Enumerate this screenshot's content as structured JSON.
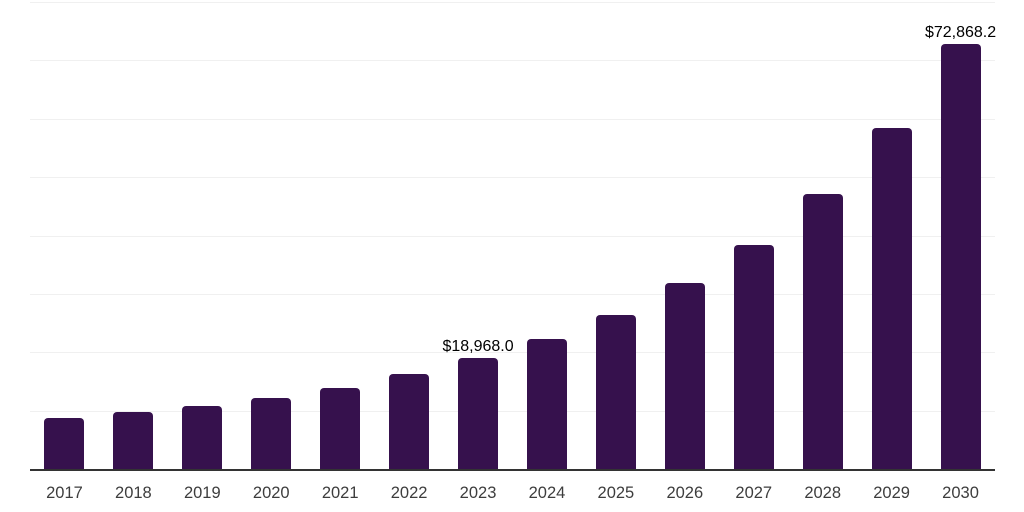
{
  "colors": {
    "background": "#ffffff",
    "bar": "#36114d",
    "gridline": "#f0f0f0",
    "axis_line": "#333333",
    "tick_label": "#3d3d3d",
    "value_label": "#000000"
  },
  "chart_data": {
    "type": "bar",
    "title": "",
    "xlabel": "",
    "ylabel": "",
    "categories": [
      "2017",
      "2018",
      "2019",
      "2020",
      "2021",
      "2022",
      "2023",
      "2024",
      "2025",
      "2026",
      "2027",
      "2028",
      "2029",
      "2030"
    ],
    "values": [
      8740,
      9760,
      10790,
      12150,
      13950,
      16290,
      18968.0,
      22250,
      26400,
      31850,
      38390,
      47130,
      58330,
      72868.2
    ],
    "data_labels": [
      "",
      "",
      "",
      "",
      "",
      "",
      "$18,968.0",
      "",
      "",
      "",
      "",
      "",
      "",
      "$72,868.2"
    ],
    "ylim": [
      0,
      80000
    ],
    "ytick_interval": 10000,
    "grid": true,
    "y_axis_tick_labels_visible": false,
    "legend_position": "none"
  }
}
